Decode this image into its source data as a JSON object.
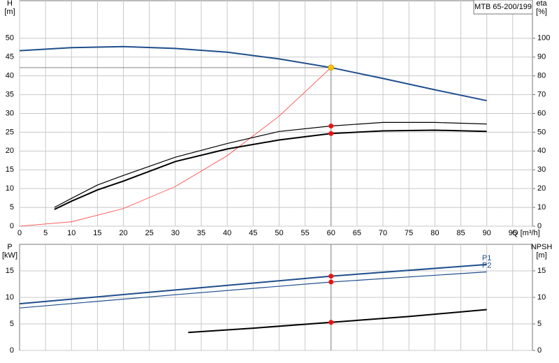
{
  "chart_data": [
    {
      "type": "line",
      "model": "MTB 65-200/199",
      "y_label": "H",
      "y_unit": "[m]",
      "y2_label": "eta",
      "y2_unit": "[%]",
      "x_label": "Q [m³/h]",
      "xlim": [
        0,
        98.8
      ],
      "xticks": [
        0,
        5,
        10,
        15,
        20,
        25,
        30,
        35,
        40,
        45,
        50,
        55,
        60,
        65,
        70,
        75,
        80,
        85,
        90,
        95
      ],
      "xtick_labels": true,
      "ylim": [
        0,
        60
      ],
      "yticks": [
        0,
        5,
        10,
        15,
        20,
        25,
        30,
        35,
        40,
        45,
        50
      ],
      "y2lim": [
        0,
        120
      ],
      "y2ticks": [
        0,
        10,
        20,
        30,
        40,
        50,
        60,
        70,
        80,
        90,
        100
      ],
      "grid": true,
      "operating_point": {
        "x": 60,
        "y": 42.2,
        "color": "#f5c400",
        "line_color": "#888888"
      },
      "series": [
        {
          "color": "#1f4e8c",
          "line_width": 2,
          "axis": "y",
          "marker_color": null,
          "x": [
            0,
            10,
            20,
            30,
            40,
            50,
            60,
            70,
            80,
            90
          ],
          "values": [
            46.7,
            47.5,
            47.8,
            47.3,
            46.3,
            44.5,
            42.2,
            39.3,
            36.3,
            33.4
          ]
        },
        {
          "color": "#ff4040",
          "line_width": 0.8,
          "axis": "y",
          "marker_color": null,
          "x": [
            0,
            10,
            20,
            30,
            40,
            50,
            60
          ],
          "values": [
            0,
            1.17,
            4.69,
            10.55,
            18.76,
            29.3,
            42.2
          ]
        },
        {
          "color": "#000000",
          "line_width": 1.2,
          "axis": "y2",
          "marker_color": "#ee1111",
          "x": [
            6.7,
            10,
            15,
            20,
            30,
            40,
            50,
            60,
            70,
            80,
            90
          ],
          "values": [
            10,
            14.8,
            21.9,
            27,
            36.7,
            44,
            50.4,
            53.3,
            55.2,
            55.2,
            54.4
          ]
        },
        {
          "color": "#000000",
          "line_width": 2,
          "axis": "y2",
          "marker_color": "#ee1111",
          "x": [
            6.7,
            10,
            15,
            20,
            30,
            40,
            50,
            60,
            70,
            80,
            90
          ],
          "values": [
            8.9,
            13.3,
            19.3,
            24,
            34.4,
            41.1,
            45.9,
            49.3,
            50.7,
            51.1,
            50.4
          ]
        }
      ]
    },
    {
      "type": "line",
      "y_label": "P",
      "y_unit": "[kW]",
      "y2_label": "NPSH",
      "y2_unit": "[m]",
      "xlim": [
        0,
        98.8
      ],
      "xticks": [
        5,
        10,
        15,
        20,
        25,
        30,
        35,
        40,
        45,
        50,
        55,
        60,
        65,
        70,
        75,
        80,
        85,
        90,
        95
      ],
      "xtick_labels": false,
      "ylim": [
        0,
        20
      ],
      "yticks": [
        0,
        5,
        10,
        15
      ],
      "y2lim": [
        0,
        20
      ],
      "y2ticks": [
        0,
        5,
        10,
        15
      ],
      "grid": true,
      "operating_point": {
        "x": 60,
        "line_color": "#888888"
      },
      "series": [
        {
          "name": "P1",
          "color": "#1f4e8c",
          "line_width": 2,
          "axis": "y",
          "marker_color": "#ee1111",
          "x": [
            0,
            30,
            60,
            90
          ],
          "values": [
            8.8,
            11.4,
            14.0,
            16.2
          ]
        },
        {
          "name": "P2",
          "color": "#1f4e8c",
          "line_width": 1.2,
          "axis": "y",
          "marker_color": "#ee1111",
          "x": [
            0,
            30,
            60,
            90
          ],
          "values": [
            8.0,
            10.5,
            12.9,
            14.8
          ]
        },
        {
          "color": "#000000",
          "line_width": 2,
          "axis": "y2",
          "marker_color": "#ee1111",
          "x": [
            32.5,
            45,
            60,
            75,
            90
          ],
          "values": [
            3.4,
            4.2,
            5.3,
            6.4,
            7.7
          ]
        }
      ]
    }
  ]
}
